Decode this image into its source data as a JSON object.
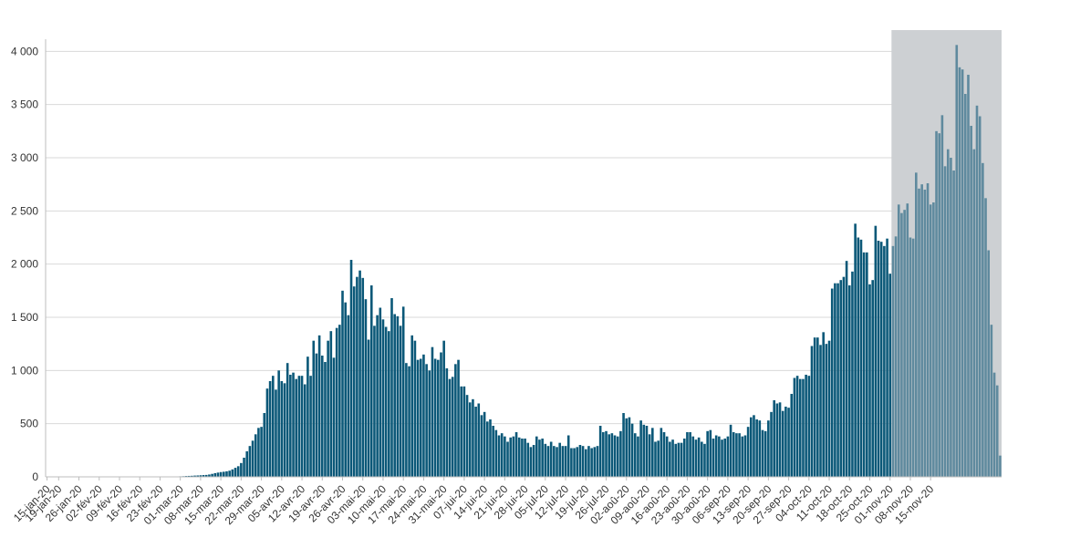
{
  "chart_data": {
    "type": "bar",
    "title": "",
    "xlabel": "",
    "ylabel": "",
    "ylim": [
      0,
      4200
    ],
    "yticks": [
      0,
      500,
      1000,
      1500,
      2000,
      2500,
      3000,
      3500,
      4000
    ],
    "ytick_labels": [
      "0",
      "500",
      "1 000",
      "1 500",
      "2 000",
      "2 500",
      "3 000",
      "3 500",
      "4 000"
    ],
    "grid": true,
    "legend": "none",
    "x_start": "2020-01-15",
    "x_end": "2020-11-19",
    "x_tick_labels": [
      "15-jan-20",
      "19-jan-20",
      "26-jan-20",
      "02-fév-20",
      "09-fév-20",
      "16-fév-20",
      "23-fév-20",
      "01-mar-20",
      "08-mar-20",
      "15-mar-20",
      "22-mar-20",
      "29-mar-20",
      "05-avr-20",
      "12-avr-20",
      "19-avr-20",
      "26-avr-20",
      "03-mai-20",
      "10-mai-20",
      "17-mai-20",
      "24-mai-20",
      "31-mai-20",
      "07-jui-20",
      "14-jui-20",
      "21-jui-20",
      "28-jui-20",
      "05-jul-20",
      "12-jul-20",
      "19-jul-20",
      "26-jul-20",
      "02-aoû-20",
      "09-aoû-20",
      "16-aoû-20",
      "23-aoû-20",
      "30-aoû-20",
      "06-sep-20",
      "13-sep-20",
      "20-sep-20",
      "27-sep-20",
      "04-oct-20",
      "11-oct-20",
      "18-oct-20",
      "25-oct-20",
      "01-nov-20",
      "08-nov-20",
      "15-nov-20"
    ],
    "series": [
      {
        "values": [
          0,
          0,
          0,
          0,
          0,
          0,
          0,
          0,
          0,
          0,
          0,
          0,
          0,
          0,
          0,
          0,
          0,
          0,
          0,
          0,
          0,
          0,
          0,
          0,
          0,
          0,
          0,
          0,
          0,
          0,
          1,
          1,
          1,
          1,
          1,
          1,
          1,
          1,
          2,
          2,
          2,
          2,
          2,
          3,
          3,
          4,
          5,
          6,
          8,
          9,
          10,
          12,
          13,
          15,
          17,
          18,
          22,
          28,
          35,
          40,
          45,
          48,
          52,
          58,
          70,
          85,
          100,
          130,
          180,
          240,
          290,
          340,
          400,
          460,
          470,
          600,
          830,
          900,
          950,
          820,
          1000,
          900,
          880,
          1070,
          960,
          980,
          920,
          950,
          950,
          870,
          1130,
          950,
          1280,
          1160,
          1330,
          1140,
          1080,
          1280,
          1370,
          1120,
          1400,
          1430,
          1750,
          1640,
          1520,
          2040,
          1790,
          1880,
          1940,
          1870,
          1670,
          1290,
          1800,
          1420,
          1520,
          1590,
          1480,
          1410,
          1370,
          1680,
          1530,
          1510,
          1420,
          1600,
          1070,
          1040,
          1330,
          1280,
          1100,
          1110,
          1150,
          1060,
          1000,
          1220,
          1110,
          1100,
          1170,
          1280,
          1020,
          920,
          940,
          1060,
          1100,
          850,
          850,
          770,
          700,
          730,
          660,
          690,
          580,
          610,
          520,
          540,
          480,
          440,
          390,
          410,
          380,
          330,
          370,
          380,
          420,
          370,
          360,
          360,
          320,
          280,
          300,
          380,
          350,
          360,
          310,
          290,
          330,
          290,
          280,
          320,
          290,
          290,
          390,
          270,
          270,
          280,
          300,
          290,
          260,
          290,
          270,
          280,
          290,
          480,
          420,
          430,
          400,
          410,
          390,
          380,
          430,
          600,
          550,
          560,
          500,
          410,
          380,
          530,
          490,
          480,
          400,
          460,
          330,
          340,
          460,
          420,
          380,
          330,
          350,
          310,
          320,
          320,
          360,
          420,
          420,
          380,
          350,
          370,
          330,
          310,
          430,
          440,
          360,
          390,
          380,
          350,
          360,
          380,
          490,
          420,
          410,
          410,
          380,
          390,
          470,
          560,
          580,
          540,
          530,
          440,
          430,
          530,
          610,
          720,
          690,
          700,
          620,
          660,
          650,
          780,
          930,
          950,
          920,
          920,
          960,
          950,
          1230,
          1310,
          1310,
          1240,
          1360,
          1250,
          1280,
          1770,
          1820,
          1820,
          1850,
          1880,
          2030,
          1800,
          1930,
          2380,
          2250,
          2230,
          2110,
          2110,
          1810,
          1850,
          2360,
          2220,
          2210,
          2170,
          2240,
          1910,
          2170,
          2260,
          2560,
          2480,
          2510,
          2570,
          2250,
          2240,
          2860,
          2710,
          2750,
          2700,
          2760,
          2560,
          2580,
          3250,
          3230,
          3400,
          2920,
          3080,
          3000,
          2880,
          4060,
          3850,
          3830,
          3600,
          3780,
          3300,
          3080,
          3490,
          3390,
          2950,
          2620,
          2130,
          1430,
          980,
          860,
          200
        ]
      }
    ],
    "forecast_start_index": 292,
    "colors": {
      "bar": "#0b5878",
      "bar_forecast": "#5f8a9e",
      "forecast_band": "#cdd0d3",
      "grid": "#d9d9d9",
      "axis": "#bdbdbd",
      "text": "#333333"
    }
  }
}
